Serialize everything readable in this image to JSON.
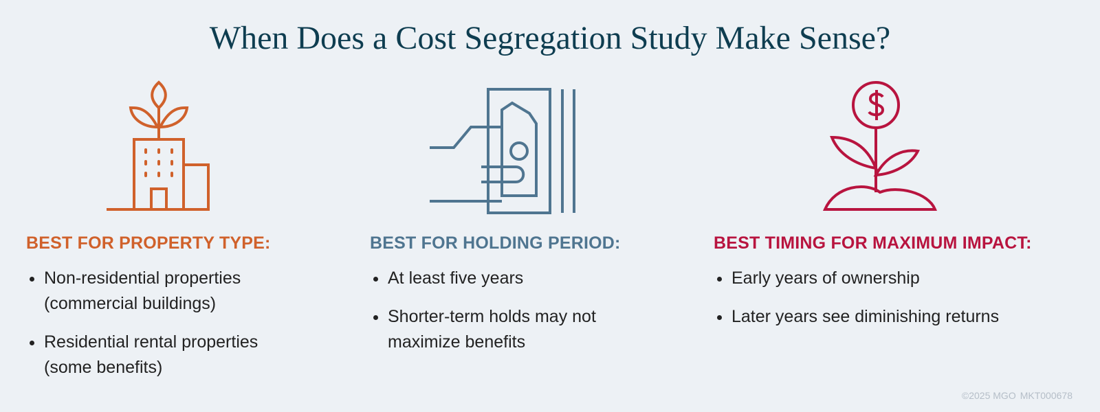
{
  "header": {
    "title": "When Does a Cost Segregation Study Make Sense?"
  },
  "columns": [
    {
      "heading": "BEST FOR PROPERTY TYPE:",
      "bullets": [
        "Non-residential properties (commercial buildings)",
        "Residential rental properties (some benefits)"
      ]
    },
    {
      "heading": "BEST FOR HOLDING PERIOD:",
      "bullets": [
        "At least five years",
        "Shorter-term holds may not maximize benefits"
      ]
    },
    {
      "heading": "BEST TIMING FOR MAXIMUM IMPACT:",
      "bullets": [
        "Early years of ownership",
        "Later years see diminishing returns"
      ]
    }
  ],
  "footer": {
    "copyright": "©2025 MGO",
    "code": "MKT000678"
  }
}
